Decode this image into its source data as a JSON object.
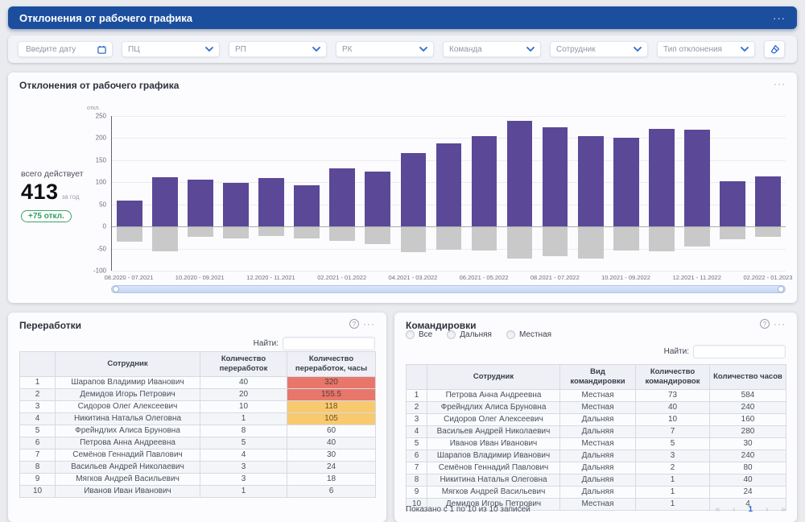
{
  "header": {
    "title": "Отклонения от рабочего графика"
  },
  "icons": {
    "menu": "···",
    "help": "?"
  },
  "filters": {
    "date": {
      "placeholder": "Введите дату"
    },
    "selects": [
      {
        "label": "ПЦ"
      },
      {
        "label": "РП"
      },
      {
        "label": "РК"
      },
      {
        "label": "Команда"
      },
      {
        "label": "Сотрудник"
      },
      {
        "label": "Тип отклонения"
      }
    ]
  },
  "colors": {
    "header_bg": "#1b4f9e",
    "accent_blue": "#2e6bcc",
    "badge_green": "#2e9e5f",
    "highlight_red": "#e8776b",
    "highlight_yellow": "#f7ca70"
  },
  "chart_panel": {
    "title": "Отклонения от рабочего графика",
    "stats": {
      "caption": "всего действует",
      "value": "413",
      "unit": "за год",
      "badge": "+75 откл."
    },
    "chart_data": {
      "type": "bar",
      "y_unit": "откл.",
      "ylim": [
        -100,
        250
      ],
      "yticks": [
        250,
        200,
        150,
        100,
        50,
        0,
        -50,
        -100
      ],
      "bar_count": 19,
      "x_labels": [
        "08.2020 - 07.2021",
        "10.2020 - 09.2021",
        "12.2020 - 11.2021",
        "02.2021 - 01.2022",
        "04.2021 - 03.2022",
        "06.2021 - 05.2022",
        "08.2021 - 07.2022",
        "10.2021 - 09.2022",
        "12.2021 - 11.2022",
        "02.2022 - 01.2023"
      ],
      "x_label_bar_step": 2,
      "series": [
        {
          "name": "deviations-positive",
          "color": "#5b4897",
          "values": [
            58,
            111,
            106,
            99,
            109,
            94,
            132,
            125,
            167,
            188,
            205,
            240,
            225,
            205,
            200,
            221,
            219,
            102,
            113
          ]
        },
        {
          "name": "deviations-negative",
          "color": "#c9c9c9",
          "values": [
            -35,
            -57,
            -23,
            -27,
            -22,
            -27,
            -32,
            -40,
            -58,
            -52,
            -55,
            -73,
            -67,
            -72,
            -55,
            -57,
            -46,
            -29,
            -23
          ]
        }
      ],
      "grid": true,
      "legend": "none"
    }
  },
  "overtime_panel": {
    "title": "Переработки",
    "search_label": "Найти:",
    "headers": [
      "",
      "Сотрудник",
      "Количество переработок",
      "Количество переработок, часы"
    ],
    "rows": [
      {
        "cells": [
          "1",
          "Шарапов Владимир Иванович",
          "40",
          "320"
        ],
        "hl": "red"
      },
      {
        "cells": [
          "2",
          "Демидов Игорь Петрович",
          "20",
          "155.5"
        ],
        "hl": "red"
      },
      {
        "cells": [
          "3",
          "Сидоров Олег Алексеевич",
          "10",
          "118"
        ],
        "hl": "yellow"
      },
      {
        "cells": [
          "4",
          "Никитина Наталья Олеговна",
          "1",
          "105"
        ],
        "hl": "yellow"
      },
      {
        "cells": [
          "5",
          "Фрейндлих Алиса Бруновна",
          "8",
          "60"
        ],
        "hl": ""
      },
      {
        "cells": [
          "6",
          "Петрова Анна Андреевна",
          "5",
          "40"
        ],
        "hl": ""
      },
      {
        "cells": [
          "7",
          "Семёнов Геннадий Павлович",
          "4",
          "30"
        ],
        "hl": ""
      },
      {
        "cells": [
          "8",
          "Васильев Андрей Николаевич",
          "3",
          "24"
        ],
        "hl": ""
      },
      {
        "cells": [
          "9",
          "Мягков Андрей Васильевич",
          "3",
          "18"
        ],
        "hl": ""
      },
      {
        "cells": [
          "10",
          "Иванов Иван Иванович",
          "1",
          "6"
        ],
        "hl": ""
      }
    ]
  },
  "trips_panel": {
    "title": "Командировки",
    "radios": [
      "Все",
      "Дальняя",
      "Местная"
    ],
    "search_label": "Найти:",
    "headers": [
      "",
      "Сотрудник",
      "Вид командировки",
      "Количество командировок",
      "Количество часов"
    ],
    "rows": [
      {
        "cells": [
          "1",
          "Петрова Анна Андреевна",
          "Местная",
          "73",
          "584"
        ]
      },
      {
        "cells": [
          "2",
          "Фрейндлих Алиса Бруновна",
          "Местная",
          "40",
          "240"
        ]
      },
      {
        "cells": [
          "3",
          "Сидоров Олег Алексеевич",
          "Дальняя",
          "10",
          "160"
        ]
      },
      {
        "cells": [
          "4",
          "Васильев Андрей Николаевич",
          "Дальняя",
          "7",
          "280"
        ]
      },
      {
        "cells": [
          "5",
          "Иванов Иван Иванович",
          "Местная",
          "5",
          "30"
        ]
      },
      {
        "cells": [
          "6",
          "Шарапов Владимир Иванович",
          "Дальняя",
          "3",
          "240"
        ]
      },
      {
        "cells": [
          "7",
          "Семёнов Геннадий Павлович",
          "Дальняя",
          "2",
          "80"
        ]
      },
      {
        "cells": [
          "8",
          "Никитина Наталья Олеговна",
          "Дальняя",
          "1",
          "40"
        ]
      },
      {
        "cells": [
          "9",
          "Мягков Андрей Васильевич",
          "Дальняя",
          "1",
          "24"
        ]
      },
      {
        "cells": [
          "10",
          "Демидов Игорь Петрович",
          "Местная",
          "1",
          "4"
        ]
      }
    ],
    "footer": {
      "shown_text": "Показано с 1 по 10 из 10 записей",
      "pagination": [
        "«",
        "‹",
        "1",
        "›",
        "»"
      ],
      "active_page": "1"
    }
  }
}
